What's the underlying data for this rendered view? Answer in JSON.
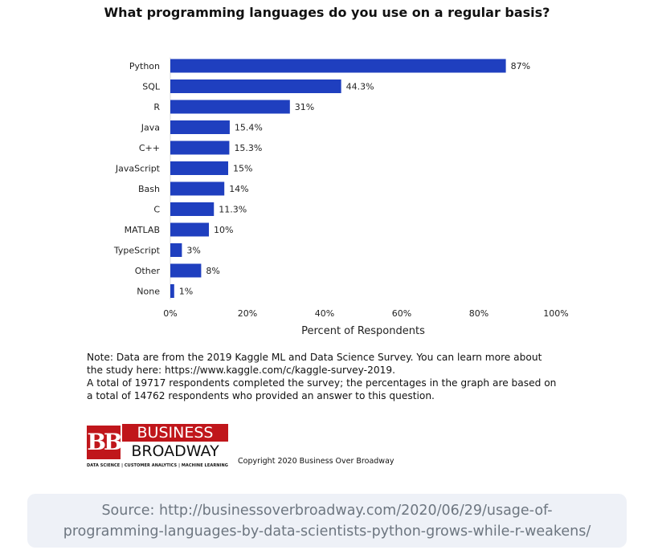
{
  "chart_data": {
    "type": "bar",
    "orientation": "horizontal",
    "title": "What programming languages do you use on a regular basis?",
    "categories": [
      "Python",
      "SQL",
      "R",
      "Java",
      "C++",
      "JavaScript",
      "Bash",
      "C",
      "MATLAB",
      "TypeScript",
      "Other",
      "None"
    ],
    "values": [
      87,
      44.3,
      31,
      15.4,
      15.3,
      15,
      14,
      11.3,
      10,
      3,
      8,
      1
    ],
    "value_labels": [
      "87%",
      "44.3%",
      "31%",
      "15.4%",
      "15.3%",
      "15%",
      "14%",
      "11.3%",
      "10%",
      "3%",
      "8%",
      "1%"
    ],
    "xlabel": "Percent of Respondents",
    "ylabel": "",
    "xlim": [
      0,
      100
    ],
    "xticks": [
      "0%",
      "20%",
      "40%",
      "60%",
      "80%",
      "100%"
    ],
    "grid": false,
    "legend": "none",
    "bar_color": "#1f3fbf"
  },
  "note": {
    "lines": [
      "Note: Data are from the 2019 Kaggle ML and Data Science Survey. You can learn more about",
      "the study here: https://www.kaggle.com/c/kaggle-survey-2019.",
      "A total of 19717 respondents completed the survey; the percentages in the graph are based on",
      "a total of 14762 respondents who provided an answer to this question."
    ]
  },
  "logo": {
    "mark": "BB",
    "top_word": "BUSINESS",
    "bottom_word": "BROADWAY",
    "tagline": "DATA SCIENCE | CUSTOMER ANALYTICS | MACHINE LEARNING",
    "color": "#c0161b"
  },
  "copyright": "Copyright 2020 Business Over Broadway",
  "source": {
    "line1": "Source:  http://businessoverbroadway.com/2020/06/29/usage-of-",
    "line2": "programming-languages-by-data-scientists-python-grows-while-r-weakens/"
  }
}
